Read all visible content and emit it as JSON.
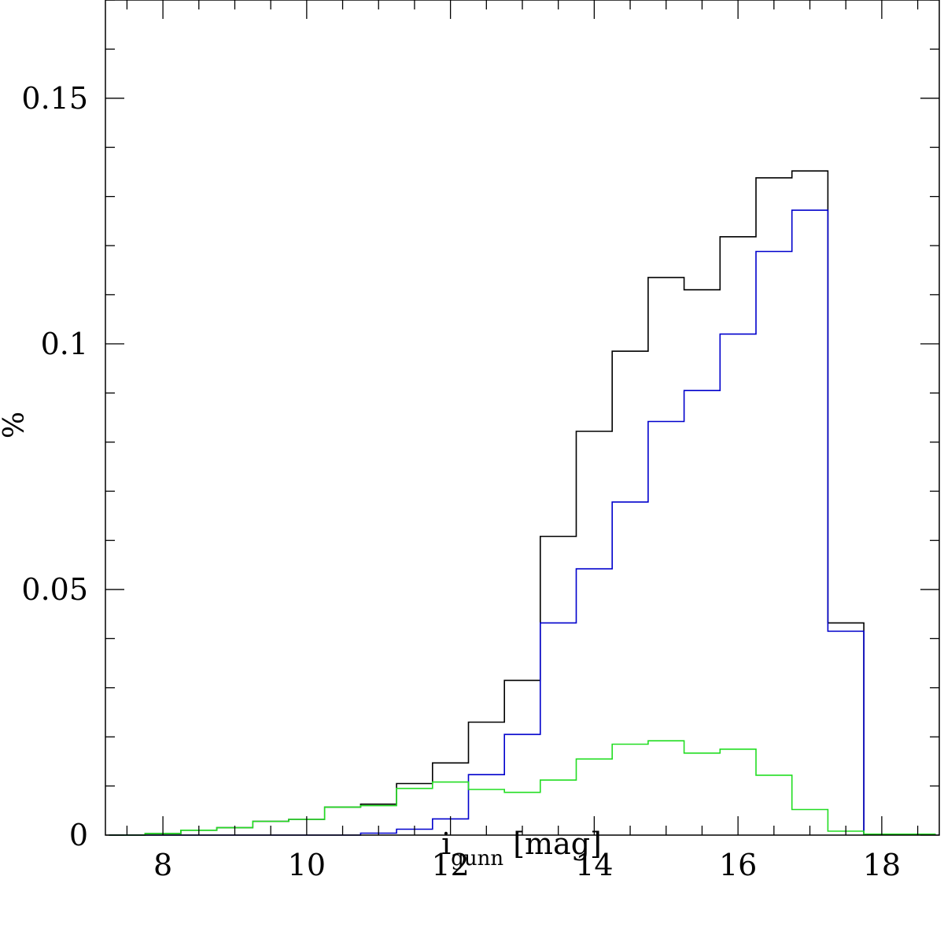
{
  "chart_data": {
    "type": "line",
    "title": "",
    "xlabel": {
      "main": "i",
      "sub": "gunn",
      "unit": " [mag]"
    },
    "ylabel": "%",
    "xlim": [
      7.2,
      18.8
    ],
    "ylim": [
      0,
      0.17
    ],
    "x_ticks": [
      8,
      10,
      12,
      14,
      16,
      18
    ],
    "x_tick_labels": [
      "8",
      "10",
      "12",
      "14",
      "16",
      "18"
    ],
    "x_minor_step": 0.5,
    "y_ticks": [
      0,
      0.05,
      0.1,
      0.15
    ],
    "y_tick_labels": [
      "0",
      "0.05",
      "0.1",
      "0.15"
    ],
    "y_minor_step": 0.01,
    "grid": false,
    "legend": "none",
    "bin_edges": [
      7.25,
      7.75,
      8.25,
      8.75,
      9.25,
      9.75,
      10.25,
      10.75,
      11.25,
      11.75,
      12.25,
      12.75,
      13.25,
      13.75,
      14.25,
      14.75,
      15.25,
      15.75,
      16.25,
      16.75,
      17.25,
      17.75,
      18.25,
      18.75
    ],
    "series": [
      {
        "color": "#000000",
        "values": [
          0.0,
          0.0003,
          0.001,
          0.0015,
          0.0028,
          0.0032,
          0.0057,
          0.0063,
          0.0105,
          0.0147,
          0.023,
          0.0315,
          0.0608,
          0.0822,
          0.0985,
          0.1135,
          0.111,
          0.1218,
          0.1338,
          0.1352,
          0.0432,
          0.0002,
          0.0002
        ]
      },
      {
        "color": "#0000cc",
        "values": [
          0.0,
          0.0,
          0.0,
          0.0,
          0.0,
          0.0,
          0.0,
          0.0004,
          0.0012,
          0.0033,
          0.0123,
          0.0205,
          0.0432,
          0.0542,
          0.0678,
          0.0842,
          0.0905,
          0.102,
          0.1188,
          0.1272,
          0.0415,
          0.0002,
          0.0002
        ]
      },
      {
        "color": "#22dd22",
        "values": [
          0.0,
          0.0003,
          0.001,
          0.0015,
          0.0028,
          0.0032,
          0.0057,
          0.006,
          0.0095,
          0.0108,
          0.0093,
          0.0087,
          0.0112,
          0.0155,
          0.0185,
          0.0192,
          0.0167,
          0.0175,
          0.0122,
          0.0052,
          0.0008,
          0.0002,
          0.0002
        ]
      }
    ]
  }
}
